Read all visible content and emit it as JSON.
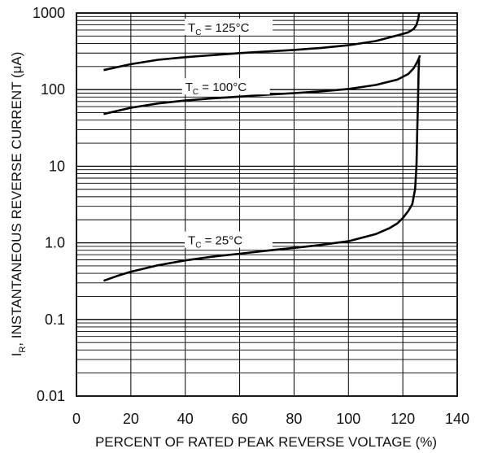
{
  "chart_data": {
    "type": "line",
    "title": "",
    "xlabel": "PERCENT OF RATED PEAK REVERSE VOLTAGE (%)",
    "ylabel": "I_R, INSTANTANEOUS REVERSE CURRENT (μA)",
    "ylabel_parts": {
      "main": "I",
      "sub": "R",
      "rest": ", INSTANTANEOUS REVERSE CURRENT (μA)"
    },
    "xlim": [
      0,
      140
    ],
    "ylim": [
      0.01,
      1000
    ],
    "yscale": "log",
    "grid": true,
    "x_ticks": [
      0,
      20,
      40,
      60,
      80,
      100,
      120,
      140
    ],
    "x_tick_labels": [
      "0",
      "20",
      "40",
      "60",
      "80",
      "100",
      "120",
      "140"
    ],
    "y_ticks": [
      0.01,
      0.1,
      1,
      10,
      100,
      1000
    ],
    "y_tick_labels": [
      "0.01",
      "0.1",
      "1.0",
      "10",
      "100",
      "1000"
    ],
    "series": [
      {
        "name": "TC = 125°C",
        "label_main": "T",
        "label_sub": "C",
        "label_rest": " = 125°C",
        "label_at": {
          "x": 41,
          "y": 600
        },
        "x": [
          10,
          20,
          30,
          40,
          50,
          60,
          70,
          80,
          90,
          100,
          110,
          118,
          122,
          124,
          125,
          125.7,
          126
        ],
        "y": [
          180,
          215,
          245,
          265,
          282,
          300,
          315,
          330,
          350,
          380,
          430,
          510,
          560,
          620,
          700,
          850,
          1000
        ]
      },
      {
        "name": "TC = 100°C",
        "label_main": "T",
        "label_sub": "C",
        "label_rest": " = 100°C",
        "label_at": {
          "x": 40,
          "y": 100
        },
        "x": [
          10,
          20,
          30,
          40,
          50,
          60,
          70,
          80,
          90,
          100,
          110,
          118,
          122,
          124,
          125.3,
          126,
          126.3
        ],
        "y": [
          48,
          58,
          66,
          72,
          77,
          81,
          86,
          90,
          95,
          102,
          115,
          135,
          160,
          190,
          230,
          260,
          280
        ]
      },
      {
        "name": "TC = 25°C",
        "label_main": "T",
        "label_sub": "C",
        "label_rest": " = 25°C",
        "label_at": {
          "x": 41,
          "y": 1.0
        },
        "x": [
          10,
          15,
          20,
          30,
          40,
          50,
          60,
          70,
          80,
          90,
          100,
          110,
          115,
          118,
          120,
          122,
          123.5,
          124.5,
          125,
          125.3,
          125.6,
          125.8,
          126
        ],
        "y": [
          0.32,
          0.37,
          0.42,
          0.51,
          0.59,
          0.66,
          0.72,
          0.79,
          0.86,
          0.94,
          1.05,
          1.3,
          1.55,
          1.8,
          2.1,
          2.6,
          3.2,
          5,
          10,
          30,
          80,
          170,
          250
        ]
      }
    ]
  }
}
